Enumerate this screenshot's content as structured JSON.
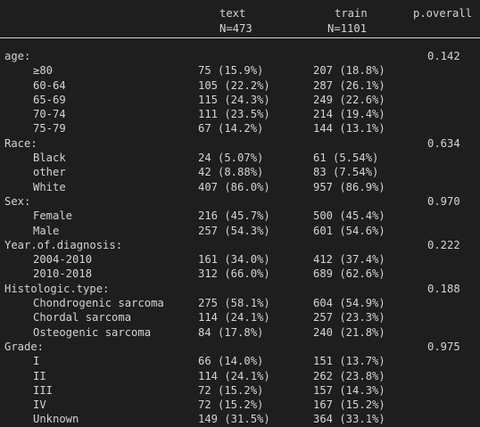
{
  "header": {
    "col1_title": "text",
    "col1_n": "N=473",
    "col2_title": "train",
    "col2_n": "N=1101",
    "pval_title": "p.overall"
  },
  "rows": [
    {
      "label": "age:",
      "p": "0.142"
    },
    {
      "label": "≥80",
      "indent": true,
      "c1": "75 (15.9%)",
      "c2": "207 (18.8%)"
    },
    {
      "label": "60-64",
      "indent": true,
      "c1": "105 (22.2%)",
      "c2": "287 (26.1%)"
    },
    {
      "label": "65-69",
      "indent": true,
      "c1": "115 (24.3%)",
      "c2": "249 (22.6%)"
    },
    {
      "label": "70-74",
      "indent": true,
      "c1": "111 (23.5%)",
      "c2": "214 (19.4%)"
    },
    {
      "label": "75-79",
      "indent": true,
      "c1": "67 (14.2%)",
      "c2": "144 (13.1%)"
    },
    {
      "label": "Race:",
      "p": "0.634"
    },
    {
      "label": "Black",
      "indent": true,
      "c1": "24 (5.07%)",
      "c2": "61 (5.54%)"
    },
    {
      "label": "other",
      "indent": true,
      "c1": "42 (8.88%)",
      "c2": "83 (7.54%)"
    },
    {
      "label": "White",
      "indent": true,
      "c1": "407 (86.0%)",
      "c2": "957 (86.9%)"
    },
    {
      "label": "Sex:",
      "p": "0.970"
    },
    {
      "label": "Female",
      "indent": true,
      "c1": "216 (45.7%)",
      "c2": "500 (45.4%)"
    },
    {
      "label": "Male",
      "indent": true,
      "c1": "257 (54.3%)",
      "c2": "601 (54.6%)"
    },
    {
      "label": "Year.of.diagnosis:",
      "p": "0.222"
    },
    {
      "label": "2004-2010",
      "indent": true,
      "c1": "161 (34.0%)",
      "c2": "412 (37.4%)"
    },
    {
      "label": "2010-2018",
      "indent": true,
      "c1": "312 (66.0%)",
      "c2": "689 (62.6%)"
    },
    {
      "label": "Histologic.type:",
      "p": "0.188"
    },
    {
      "label": "Chondrogenic sarcoma",
      "indent": true,
      "c1": "275 (58.1%)",
      "c2": "604 (54.9%)"
    },
    {
      "label": "Chordal sarcoma",
      "indent": true,
      "c1": "114 (24.1%)",
      "c2": "257 (23.3%)"
    },
    {
      "label": "Osteogenic sarcoma",
      "indent": true,
      "c1": "84 (17.8%)",
      "c2": "240 (21.8%)"
    },
    {
      "label": "Grade:",
      "p": "0.975"
    },
    {
      "label": "I",
      "indent": true,
      "c1": "66 (14.0%)",
      "c2": "151 (13.7%)"
    },
    {
      "label": "II",
      "indent": true,
      "c1": "114 (24.1%)",
      "c2": "262 (23.8%)"
    },
    {
      "label": "III",
      "indent": true,
      "c1": "72 (15.2%)",
      "c2": "157 (14.3%)"
    },
    {
      "label": "IV",
      "indent": true,
      "c1": "72 (15.2%)",
      "c2": "167 (15.2%)"
    },
    {
      "label": "Unknown",
      "indent": true,
      "c1": "149 (31.5%)",
      "c2": "364 (33.1%)"
    }
  ]
}
